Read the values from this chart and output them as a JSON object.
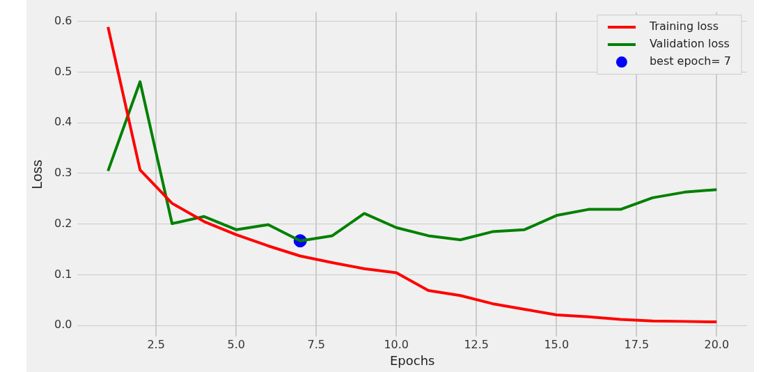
{
  "chart_data": {
    "type": "line",
    "xlabel": "Epochs",
    "ylabel": "Loss",
    "x": [
      1,
      2,
      3,
      4,
      5,
      6,
      7,
      8,
      9,
      10,
      11,
      12,
      13,
      14,
      15,
      16,
      17,
      18,
      19,
      20
    ],
    "series": [
      {
        "name": "Training loss",
        "color": "#ff0000",
        "values": [
          0.589,
          0.307,
          0.241,
          0.205,
          0.179,
          0.157,
          0.137,
          0.124,
          0.112,
          0.104,
          0.069,
          0.059,
          0.043,
          0.032,
          0.021,
          0.017,
          0.012,
          0.009,
          0.008,
          0.007
        ]
      },
      {
        "name": "Validation loss",
        "color": "#008000",
        "values": [
          0.305,
          0.481,
          0.201,
          0.215,
          0.189,
          0.199,
          0.167,
          0.177,
          0.221,
          0.193,
          0.177,
          0.169,
          0.185,
          0.189,
          0.217,
          0.229,
          0.229,
          0.252,
          0.263,
          0.268
        ]
      },
      {
        "name": "best epoch= 7",
        "type": "scatter",
        "color": "#0000ff",
        "marker": "circle",
        "x": [
          7
        ],
        "values": [
          0.167
        ]
      }
    ],
    "xlim": [
      0.05,
      20.95
    ],
    "ylim": [
      -0.022,
      0.618
    ],
    "xticks": [
      2.5,
      {
        "value": 5,
        "label": "5.0"
      },
      7.5,
      {
        "value": 10,
        "label": "10.0"
      },
      12.5,
      {
        "value": 15,
        "label": "15.0"
      },
      17.5,
      {
        "value": 20,
        "label": "20.0"
      }
    ],
    "yticks": [
      {
        "value": 0,
        "label": "0.0"
      },
      0.1,
      0.2,
      0.3,
      0.4,
      0.5,
      0.6
    ],
    "grid": true,
    "legend": "top right"
  }
}
